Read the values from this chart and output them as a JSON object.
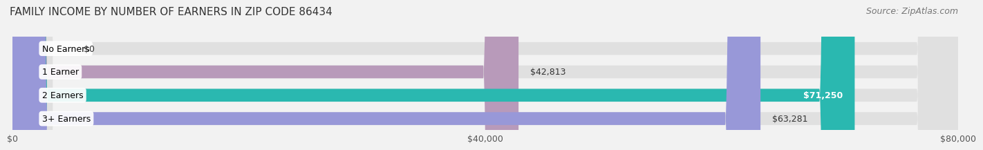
{
  "title": "FAMILY INCOME BY NUMBER OF EARNERS IN ZIP CODE 86434",
  "source": "Source: ZipAtlas.com",
  "categories": [
    "No Earners",
    "1 Earner",
    "2 Earners",
    "3+ Earners"
  ],
  "values": [
    0,
    42813,
    71250,
    63281
  ],
  "bar_colors": [
    "#a8c4e0",
    "#b89aba",
    "#2ab8b0",
    "#9898d8"
  ],
  "label_texts": [
    "$0",
    "$42,813",
    "$71,250",
    "$63,281"
  ],
  "xlim": [
    0,
    80000
  ],
  "xticks": [
    0,
    40000,
    80000
  ],
  "xticklabels": [
    "$0",
    "$40,000",
    "$80,000"
  ],
  "background_color": "#f2f2f2",
  "bar_bg_color": "#e0e0e0",
  "title_fontsize": 11,
  "source_fontsize": 9,
  "label_fontsize": 9,
  "category_fontsize": 9
}
